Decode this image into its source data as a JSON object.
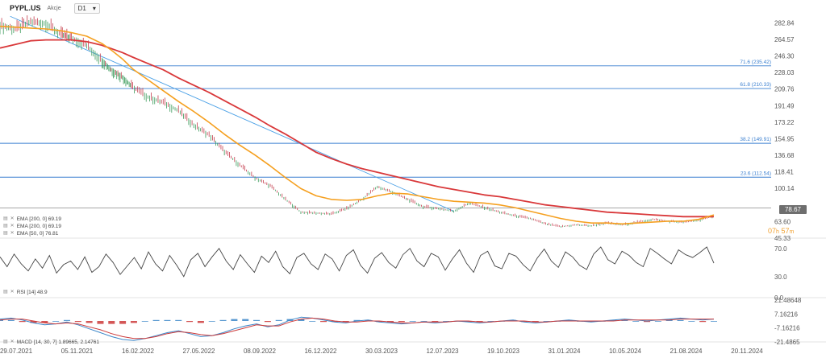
{
  "header": {
    "symbol": "PYPL.US",
    "symbol_sub": "Akcje",
    "timeframe": "D1",
    "timeframe_caret": "▾"
  },
  "countdown": {
    "hours": "07",
    "h": "h",
    "minutes": "57",
    "m": "m"
  },
  "last_price": "78.67",
  "indicators": {
    "ema_200_a": "EMA [200, 0] 69.19",
    "ema_200_b": "EMA [200, 0] 69.19",
    "ema_50": "EMA [50, 0] 76.81",
    "rsi": "RSI [14] 48.9",
    "macd": "MACD [14, 30, 7] 1.89665, 2.14761"
  },
  "colors": {
    "price_up": "#3a9a5a",
    "price_down": "#c43c4c",
    "ema200": "#d9383a",
    "ema50": "#f5a020",
    "trendline": "#4aa0e6",
    "fib_line": "#3a7fd0",
    "hline": "#999999",
    "rsi_line": "#444444",
    "macd_line": "#3a86c8",
    "signal_line": "#cc3a3a",
    "hist_pos": "#3a86c8",
    "hist_neg": "#cc3a3a"
  },
  "chart_data": [
    {
      "type": "line",
      "name": "price",
      "x_tick_labels": [
        "29.07.2021",
        "05.11.2021",
        "16.02.2022",
        "27.05.2022",
        "08.09.2022",
        "16.12.2022",
        "30.03.2023",
        "12.07.2023",
        "19.10.2023",
        "31.01.2024",
        "10.05.2024",
        "21.08.2024",
        "20.11.2024"
      ],
      "y_tick_labels": [
        "282.84",
        "264.57",
        "246.30",
        "228.03",
        "209.76",
        "191.49",
        "173.22",
        "154.95",
        "136.68",
        "118.41",
        "100.14",
        "63.60",
        "45.33"
      ],
      "ylim": [
        45.33,
        292
      ],
      "x": [
        0,
        3,
        6,
        9,
        12,
        14,
        17,
        20,
        22,
        24,
        26,
        29,
        32,
        35,
        38,
        41,
        44,
        47,
        50,
        53,
        56,
        59,
        62,
        65,
        68,
        71,
        74,
        77,
        80,
        83,
        86,
        89,
        92,
        95,
        98,
        101,
        104,
        107,
        110,
        113,
        116,
        119,
        122,
        125,
        128,
        131,
        134,
        137,
        140
      ],
      "close": [
        280,
        276,
        284,
        282,
        270,
        266,
        258,
        241,
        230,
        223,
        212,
        201,
        195,
        186,
        170,
        159,
        141,
        126,
        112,
        103,
        88,
        74,
        73,
        72,
        78,
        88,
        102,
        96,
        88,
        80,
        78,
        75,
        84,
        79,
        74,
        70,
        67,
        61,
        58,
        60,
        59,
        62,
        60,
        63,
        66,
        64,
        63,
        65,
        70
      ],
      "ema50": [
        279,
        278,
        277,
        276,
        274,
        272,
        268,
        260,
        252,
        243,
        232,
        220,
        208,
        196,
        185,
        173,
        160,
        148,
        137,
        125,
        112,
        100,
        92,
        88,
        87,
        88,
        92,
        95,
        94,
        91,
        88,
        86,
        85,
        84,
        82,
        79,
        75,
        71,
        67,
        64,
        62,
        62,
        61,
        62,
        63,
        64,
        64,
        66,
        71
      ],
      "ema200": [
        255,
        259,
        263,
        264,
        264,
        264,
        262,
        258,
        254,
        250,
        245,
        238,
        231,
        222,
        214,
        206,
        197,
        188,
        179,
        169,
        160,
        150,
        140,
        133,
        127,
        122,
        118,
        114,
        110,
        106,
        102,
        99,
        96,
        93,
        91,
        88,
        85,
        82,
        80,
        78,
        76,
        74,
        73,
        72,
        71,
        70,
        69,
        69,
        69
      ],
      "trendline": [
        [
          2,
          290
        ],
        [
          89,
          75
        ]
      ],
      "hline_last": 78.67
    },
    {
      "type": "line",
      "name": "fibonacci",
      "levels": [
        {
          "label": "71.6 (235.42)",
          "value": 235.42
        },
        {
          "label": "61.8 (210.33)",
          "value": 210.33
        },
        {
          "label": "38.2 (149.91)",
          "value": 149.91
        },
        {
          "label": "23.6 (112.54)",
          "value": 112.54
        }
      ]
    },
    {
      "type": "line",
      "name": "RSI",
      "y_tick_labels": [
        "70.0",
        "30.0",
        "0.0"
      ],
      "ylim": [
        0,
        80
      ],
      "values": [
        58,
        44,
        62,
        48,
        38,
        55,
        42,
        60,
        35,
        47,
        52,
        40,
        58,
        36,
        44,
        62,
        50,
        33,
        45,
        57,
        41,
        65,
        48,
        38,
        60,
        46,
        30,
        54,
        63,
        44,
        58,
        70,
        52,
        40,
        61,
        48,
        36,
        59,
        50,
        66,
        44,
        34,
        57,
        63,
        48,
        40,
        62,
        55,
        38,
        60,
        68,
        46,
        35,
        56,
        64,
        50,
        42,
        61,
        70,
        52,
        44,
        63,
        58,
        39,
        55,
        68,
        49,
        36,
        60,
        66,
        45,
        41,
        63,
        59,
        47,
        38,
        56,
        69,
        52,
        43,
        65,
        58,
        46,
        40,
        62,
        72,
        54,
        48,
        66,
        60,
        50,
        44,
        70,
        63,
        55,
        48,
        68,
        61,
        57,
        64,
        72,
        49
      ]
    },
    {
      "type": "line",
      "name": "MACD",
      "y_tick_labels": [
        "21.48648",
        "7.16216",
        "-7.16216",
        "-21.4865"
      ],
      "ylim": [
        -21.4865,
        21.48648
      ],
      "macd": [
        2,
        3,
        1,
        -2,
        -4,
        -3,
        -1,
        -4,
        -8,
        -12,
        -16,
        -19,
        -20,
        -18,
        -15,
        -12,
        -10,
        -13,
        -16,
        -15,
        -12,
        -8,
        -5,
        -3,
        -6,
        -4,
        1,
        4,
        3,
        1,
        -1,
        -2,
        0,
        1,
        -1,
        -2,
        -3,
        -2,
        -1,
        -2,
        -1,
        0,
        -1,
        -2,
        -1,
        0,
        1,
        -1,
        -2,
        -1,
        0,
        1,
        0,
        -1,
        0,
        1,
        2,
        1,
        0,
        1,
        2,
        3,
        2,
        1,
        2
      ],
      "signal": [
        1,
        2,
        2,
        0,
        -2,
        -3,
        -2,
        -3,
        -6,
        -9,
        -13,
        -16,
        -18,
        -18,
        -16,
        -13,
        -11,
        -12,
        -14,
        -15,
        -13,
        -10,
        -7,
        -4,
        -5,
        -5,
        -1,
        2,
        3,
        2,
        0,
        -1,
        -1,
        0,
        0,
        -1,
        -2,
        -2,
        -1,
        -1,
        -1,
        0,
        0,
        -1,
        -1,
        0,
        0,
        0,
        -1,
        -1,
        0,
        0,
        0,
        0,
        0,
        0,
        1,
        1,
        1,
        1,
        1,
        2,
        2,
        2,
        2
      ]
    }
  ]
}
